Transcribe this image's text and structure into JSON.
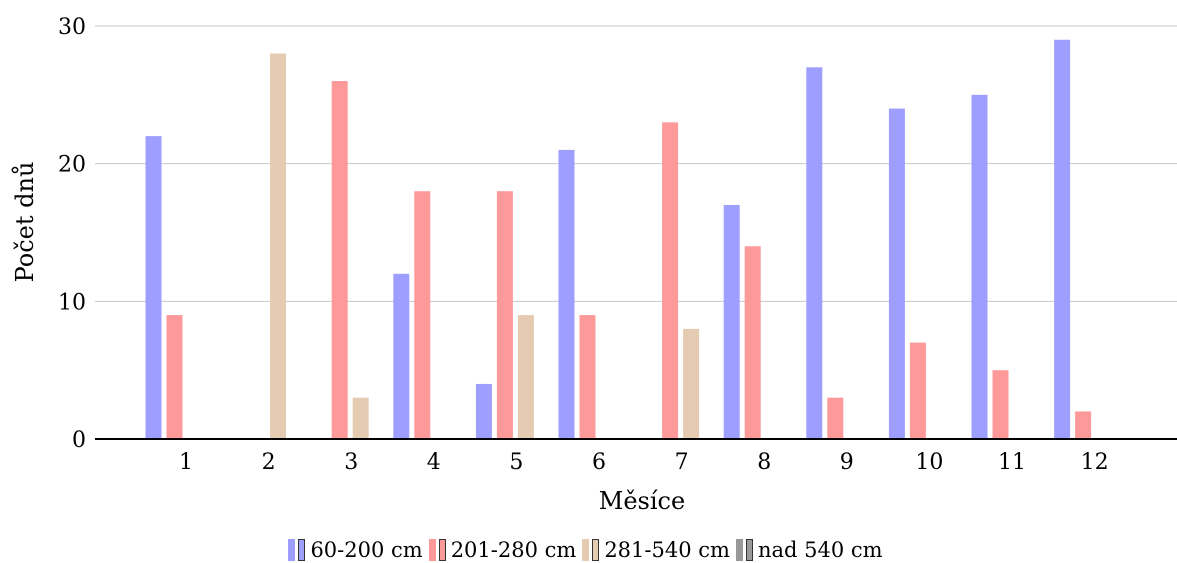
{
  "chart_data": {
    "type": "bar",
    "xlabel": "Měsíce",
    "ylabel": "Počet dnů",
    "categories": [
      "1",
      "2",
      "3",
      "4",
      "5",
      "6",
      "7",
      "8",
      "9",
      "10",
      "11",
      "12"
    ],
    "ylim": [
      0,
      30
    ],
    "yticks": [
      "0",
      "10",
      "20",
      "30"
    ],
    "grid": true,
    "legend_position": "bottom",
    "series": [
      {
        "name": "60-200 cm",
        "color": "#9e9efe",
        "values": [
          22,
          0,
          0,
          12,
          4,
          21,
          0,
          17,
          27,
          24,
          25,
          29
        ]
      },
      {
        "name": "201-280 cm",
        "color": "#fd9999",
        "values": [
          9,
          0,
          26,
          18,
          18,
          9,
          23,
          14,
          3,
          7,
          5,
          2
        ]
      },
      {
        "name": "281-540 cm",
        "color": "#e5cbb1",
        "values": [
          0,
          28,
          3,
          0,
          9,
          0,
          8,
          0,
          0,
          0,
          0,
          0
        ]
      },
      {
        "name": "nad 540 cm",
        "color": "#999999",
        "values": [
          0,
          0,
          0,
          0,
          0,
          0,
          0,
          0,
          0,
          0,
          0,
          0
        ]
      }
    ]
  }
}
